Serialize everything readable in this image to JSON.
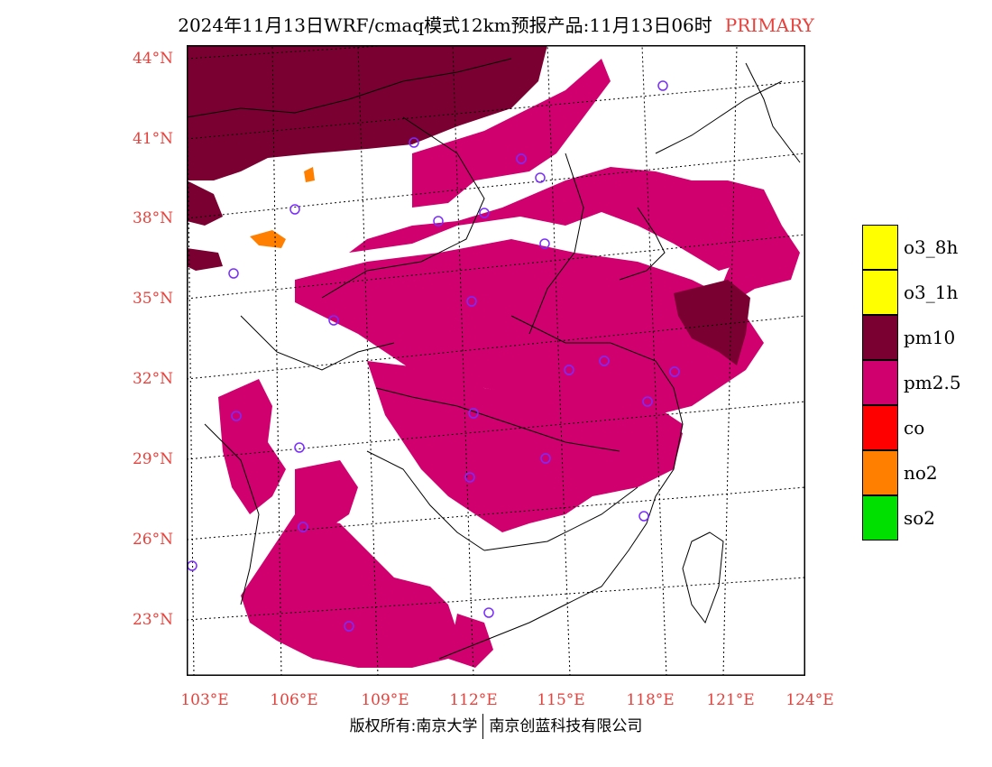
{
  "title": {
    "main": "2024年11月13日WRF/cmaq模式12km预报产品:11月13日06时",
    "tag": "PRIMARY"
  },
  "lat_labels": [
    "44°N",
    "41°N",
    "38°N",
    "35°N",
    "32°N",
    "29°N",
    "26°N",
    "23°N"
  ],
  "lon_labels": [
    "103°E",
    "106°E",
    "109°E",
    "112°E",
    "115°E",
    "118°E",
    "121°E",
    "124°E"
  ],
  "legend": [
    {
      "label": "o3_8h",
      "color": "#ffff00"
    },
    {
      "label": "o3_1h",
      "color": "#ffff00"
    },
    {
      "label": "pm10",
      "color": "#7a0032"
    },
    {
      "label": "pm2.5",
      "color": "#d0006f"
    },
    {
      "label": "co",
      "color": "#ff0000"
    },
    {
      "label": "no2",
      "color": "#ff7f00"
    },
    {
      "label": "so2",
      "color": "#00e000"
    }
  ],
  "footer": {
    "left": "版权所有:南京大学",
    "right": "南京创蓝科技有限公司"
  },
  "colors": {
    "pm25": "#d0006f",
    "pm10": "#7a0032",
    "no2": "#ff7f00",
    "label_red": "#e8413c",
    "station": "#7a2cff"
  }
}
